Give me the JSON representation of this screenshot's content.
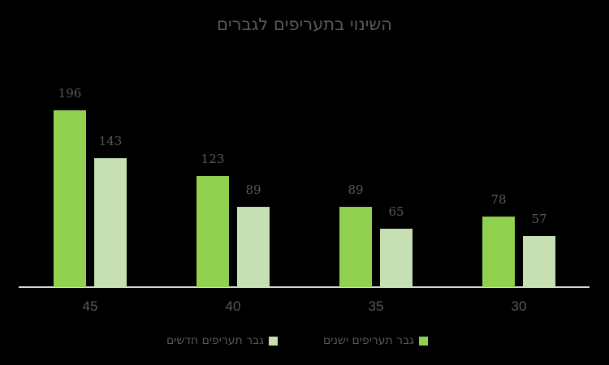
{
  "chart_data": {
    "type": "bar",
    "title": "השינוי בתעריפים לגברים",
    "categories": [
      "45",
      "40",
      "35",
      "30"
    ],
    "series": [
      {
        "name": "גבר תעריפים ישנים",
        "color": "#92d050",
        "values": [
          196,
          123,
          89,
          78
        ]
      },
      {
        "name": "גבר תעריפים חדשים",
        "color": "#c6e0b4",
        "values": [
          143,
          89,
          65,
          57
        ]
      }
    ],
    "xlabel": "",
    "ylabel": "",
    "grid": false,
    "legend_position": "bottom",
    "data_labels": true
  },
  "chart": {
    "title": "השינוי בתעריפים לגברים",
    "legend": {
      "old_label": "גבר תעריפים ישנים",
      "new_label": "גבר תעריפים חדשים"
    }
  }
}
